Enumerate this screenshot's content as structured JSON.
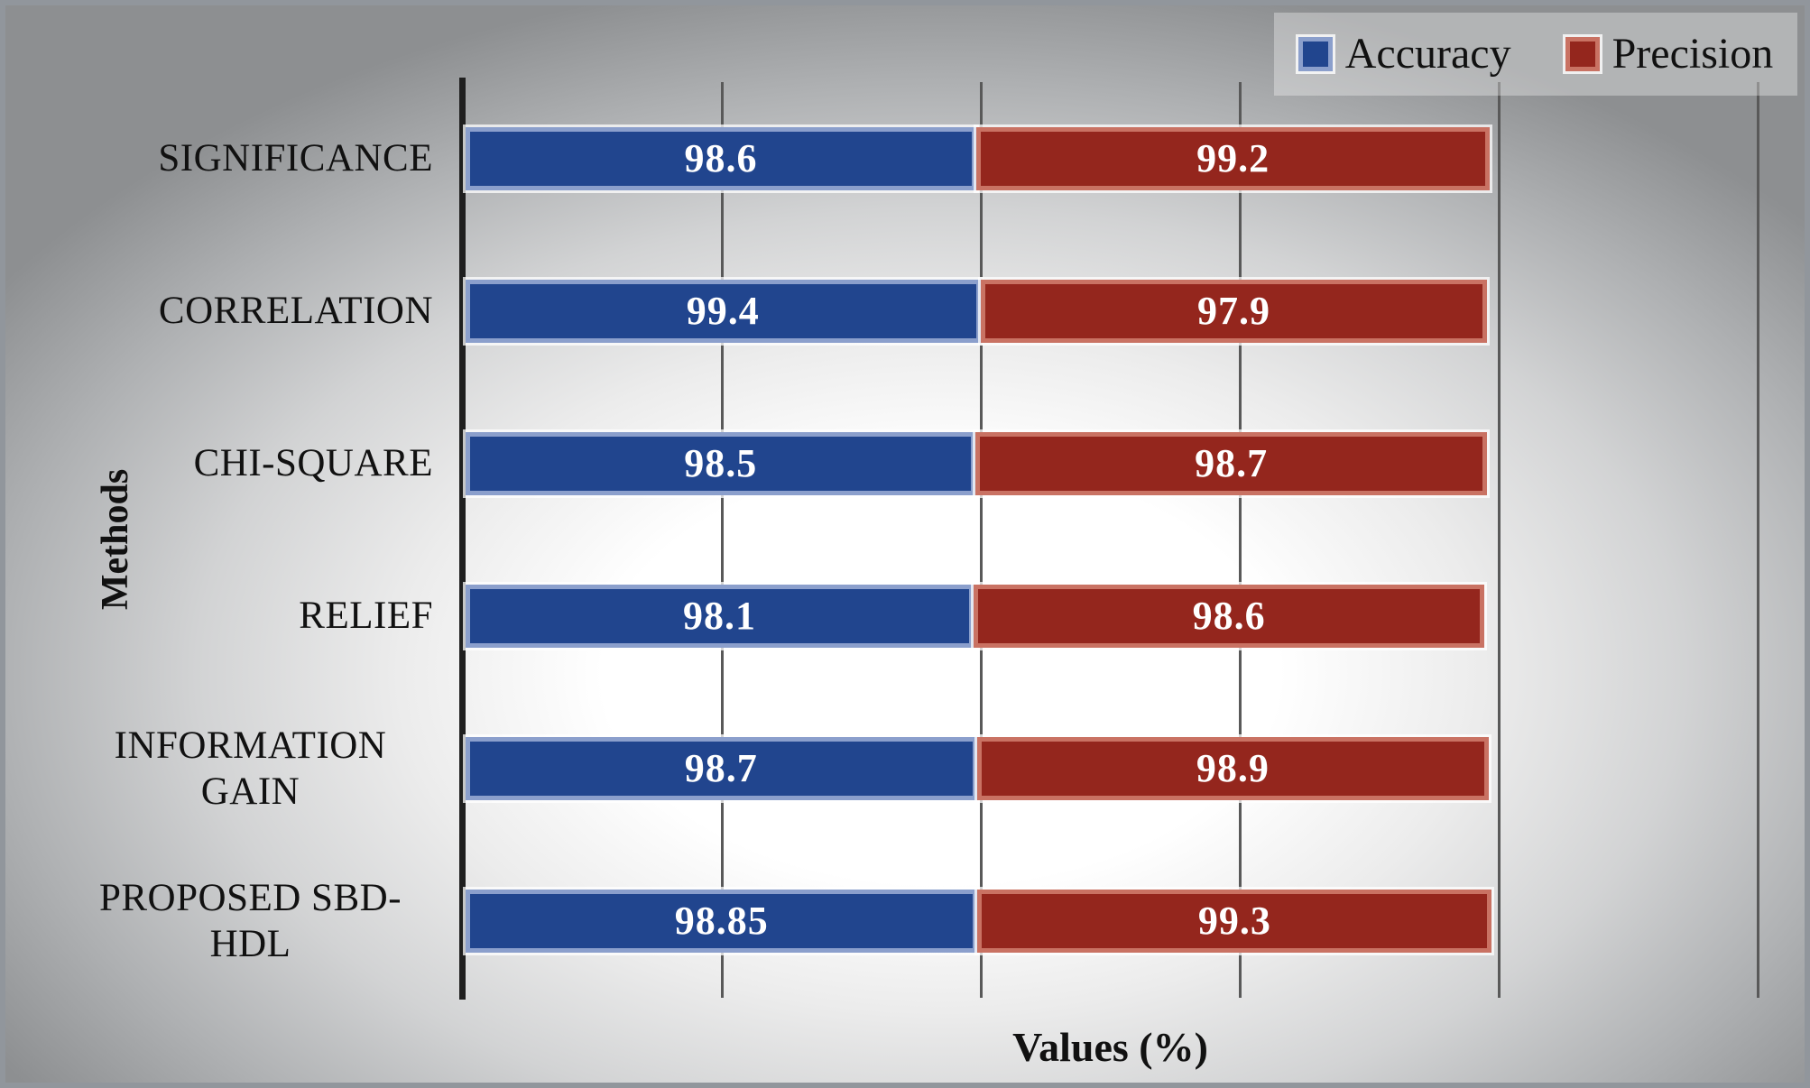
{
  "legend": {
    "items": [
      {
        "label": "Accuracy",
        "fill": "#21458e",
        "border": "#8b9fcc"
      },
      {
        "label": "Precision",
        "fill": "#94261d",
        "border": "#c97263"
      }
    ]
  },
  "axes": {
    "x_title": "Values (%)",
    "y_title": "Methods",
    "x_min": 0,
    "x_max": 250,
    "x_gridline_step": 50,
    "gridlines_on": true,
    "x_tick_labels_shown": false
  },
  "chart_data": {
    "type": "bar",
    "orientation": "horizontal-stacked",
    "title": "",
    "xlabel": "Values (%)",
    "ylabel": "Methods",
    "xlim": [
      0,
      250
    ],
    "legend_position": "top-right",
    "categories": [
      "SIGNIFICANCE",
      "CORRELATION",
      "CHI-SQUARE",
      "RELIEF",
      "INFORMATION GAIN",
      "PROPOSED SBD-HDL"
    ],
    "series": [
      {
        "name": "Accuracy",
        "color": "#21458e",
        "border_color": "#8b9fcc",
        "values": [
          98.6,
          99.4,
          98.5,
          98.1,
          98.7,
          98.85
        ]
      },
      {
        "name": "Precision",
        "color": "#94261d",
        "border_color": "#c97263",
        "values": [
          99.2,
          97.9,
          98.7,
          98.6,
          98.9,
          99.3
        ]
      }
    ],
    "value_labels_shown": true,
    "value_label_color": "#ffffff"
  },
  "colors": {
    "gridline": "#595959",
    "axis_line": "#1f1f1f",
    "background_edge": "#8d8f91",
    "background_center": "#ffffff",
    "legend_background": "rgba(255,255,255,0.33)"
  }
}
